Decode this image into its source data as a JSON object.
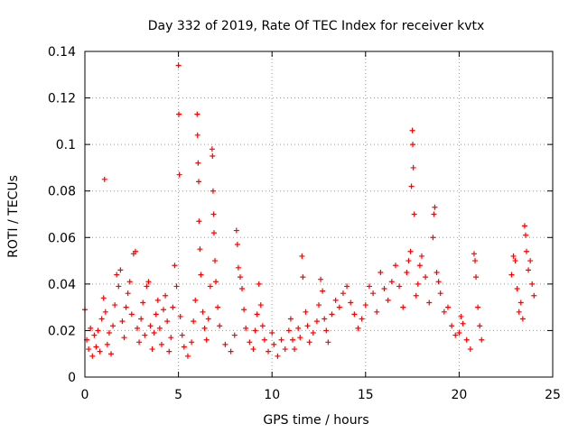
{
  "chart_data": {
    "type": "scatter",
    "title": "Day 332 of 2019, Rate Of TEC Index for receiver kvtx",
    "xlabel": "GPS time / hours",
    "ylabel": "ROTI / TECUs",
    "xlim": [
      0,
      25
    ],
    "ylim": [
      0,
      0.14
    ],
    "xticks": [
      0,
      5,
      10,
      15,
      20,
      25
    ],
    "xtick_labels": [
      "0",
      "5",
      "10",
      "15",
      "20",
      "25"
    ],
    "yticks": [
      0,
      0.02,
      0.04,
      0.06,
      0.08,
      0.1,
      0.12,
      0.14
    ],
    "ytick_labels": [
      "0",
      "0.02",
      "0.04",
      "0.06",
      "0.08",
      "0.1",
      "0.12",
      "0.14"
    ],
    "grid": true,
    "marker": "+",
    "color": "#ff0000",
    "series": [
      {
        "name": "ROTI",
        "points": [
          [
            0.0,
            0.029
          ],
          [
            0.1,
            0.016
          ],
          [
            0.2,
            0.012
          ],
          [
            0.3,
            0.021
          ],
          [
            0.4,
            0.009
          ],
          [
            0.5,
            0.018
          ],
          [
            0.6,
            0.013
          ],
          [
            0.7,
            0.02
          ],
          [
            0.8,
            0.011
          ],
          [
            0.9,
            0.025
          ],
          [
            1.0,
            0.034
          ],
          [
            1.05,
            0.085
          ],
          [
            1.1,
            0.028
          ],
          [
            1.2,
            0.014
          ],
          [
            1.3,
            0.019
          ],
          [
            1.4,
            0.01
          ],
          [
            1.5,
            0.022
          ],
          [
            1.6,
            0.031
          ],
          [
            1.7,
            0.044
          ],
          [
            1.8,
            0.039
          ],
          [
            1.9,
            0.046
          ],
          [
            2.0,
            0.024
          ],
          [
            2.1,
            0.017
          ],
          [
            2.2,
            0.03
          ],
          [
            2.3,
            0.036
          ],
          [
            2.4,
            0.041
          ],
          [
            2.5,
            0.027
          ],
          [
            2.6,
            0.053
          ],
          [
            2.7,
            0.054
          ],
          [
            2.8,
            0.021
          ],
          [
            2.9,
            0.015
          ],
          [
            3.0,
            0.025
          ],
          [
            3.1,
            0.032
          ],
          [
            3.2,
            0.018
          ],
          [
            3.3,
            0.039
          ],
          [
            3.4,
            0.041
          ],
          [
            3.5,
            0.022
          ],
          [
            3.6,
            0.012
          ],
          [
            3.7,
            0.019
          ],
          [
            3.8,
            0.027
          ],
          [
            3.9,
            0.033
          ],
          [
            4.0,
            0.021
          ],
          [
            4.1,
            0.014
          ],
          [
            4.2,
            0.029
          ],
          [
            4.3,
            0.035
          ],
          [
            4.4,
            0.024
          ],
          [
            4.5,
            0.011
          ],
          [
            4.6,
            0.017
          ],
          [
            4.7,
            0.03
          ],
          [
            4.8,
            0.048
          ],
          [
            4.9,
            0.039
          ],
          [
            5.0,
            0.134
          ],
          [
            5.02,
            0.113
          ],
          [
            5.05,
            0.087
          ],
          [
            5.1,
            0.026
          ],
          [
            5.2,
            0.018
          ],
          [
            5.3,
            0.013
          ],
          [
            5.5,
            0.009
          ],
          [
            5.7,
            0.015
          ],
          [
            5.8,
            0.024
          ],
          [
            5.9,
            0.033
          ],
          [
            6.0,
            0.113
          ],
          [
            6.02,
            0.104
          ],
          [
            6.05,
            0.092
          ],
          [
            6.08,
            0.084
          ],
          [
            6.1,
            0.067
          ],
          [
            6.15,
            0.055
          ],
          [
            6.2,
            0.044
          ],
          [
            6.3,
            0.028
          ],
          [
            6.4,
            0.021
          ],
          [
            6.5,
            0.016
          ],
          [
            6.6,
            0.025
          ],
          [
            6.7,
            0.039
          ],
          [
            6.8,
            0.098
          ],
          [
            6.82,
            0.095
          ],
          [
            6.85,
            0.08
          ],
          [
            6.88,
            0.07
          ],
          [
            6.9,
            0.062
          ],
          [
            6.95,
            0.05
          ],
          [
            7.0,
            0.041
          ],
          [
            7.1,
            0.03
          ],
          [
            7.2,
            0.022
          ],
          [
            7.5,
            0.014
          ],
          [
            7.8,
            0.011
          ],
          [
            8.0,
            0.018
          ],
          [
            8.1,
            0.063
          ],
          [
            8.15,
            0.057
          ],
          [
            8.2,
            0.047
          ],
          [
            8.3,
            0.043
          ],
          [
            8.4,
            0.038
          ],
          [
            8.5,
            0.029
          ],
          [
            8.6,
            0.021
          ],
          [
            8.8,
            0.015
          ],
          [
            9.0,
            0.012
          ],
          [
            9.1,
            0.02
          ],
          [
            9.2,
            0.027
          ],
          [
            9.3,
            0.04
          ],
          [
            9.4,
            0.031
          ],
          [
            9.5,
            0.022
          ],
          [
            9.6,
            0.016
          ],
          [
            9.8,
            0.011
          ],
          [
            10.0,
            0.019
          ],
          [
            10.1,
            0.014
          ],
          [
            10.3,
            0.009
          ],
          [
            10.5,
            0.016
          ],
          [
            10.7,
            0.012
          ],
          [
            10.9,
            0.02
          ],
          [
            11.0,
            0.025
          ],
          [
            11.1,
            0.016
          ],
          [
            11.2,
            0.012
          ],
          [
            11.4,
            0.021
          ],
          [
            11.5,
            0.017
          ],
          [
            11.6,
            0.052
          ],
          [
            11.65,
            0.043
          ],
          [
            11.8,
            0.028
          ],
          [
            11.9,
            0.022
          ],
          [
            12.0,
            0.015
          ],
          [
            12.2,
            0.019
          ],
          [
            12.4,
            0.024
          ],
          [
            12.5,
            0.031
          ],
          [
            12.6,
            0.042
          ],
          [
            12.7,
            0.037
          ],
          [
            12.8,
            0.025
          ],
          [
            12.9,
            0.02
          ],
          [
            13.0,
            0.015
          ],
          [
            13.2,
            0.027
          ],
          [
            13.4,
            0.033
          ],
          [
            13.6,
            0.03
          ],
          [
            13.8,
            0.036
          ],
          [
            14.0,
            0.039
          ],
          [
            14.2,
            0.032
          ],
          [
            14.4,
            0.027
          ],
          [
            14.6,
            0.021
          ],
          [
            14.8,
            0.025
          ],
          [
            15.0,
            0.031
          ],
          [
            15.2,
            0.039
          ],
          [
            15.4,
            0.036
          ],
          [
            15.6,
            0.028
          ],
          [
            15.8,
            0.045
          ],
          [
            16.0,
            0.038
          ],
          [
            16.2,
            0.033
          ],
          [
            16.4,
            0.041
          ],
          [
            16.6,
            0.048
          ],
          [
            16.8,
            0.039
          ],
          [
            17.0,
            0.03
          ],
          [
            17.2,
            0.045
          ],
          [
            17.3,
            0.05
          ],
          [
            17.4,
            0.054
          ],
          [
            17.45,
            0.082
          ],
          [
            17.5,
            0.106
          ],
          [
            17.52,
            0.1
          ],
          [
            17.55,
            0.09
          ],
          [
            17.6,
            0.07
          ],
          [
            17.7,
            0.035
          ],
          [
            17.8,
            0.04
          ],
          [
            17.9,
            0.048
          ],
          [
            18.0,
            0.052
          ],
          [
            18.2,
            0.043
          ],
          [
            18.4,
            0.032
          ],
          [
            18.6,
            0.06
          ],
          [
            18.65,
            0.07
          ],
          [
            18.7,
            0.073
          ],
          [
            18.8,
            0.045
          ],
          [
            18.9,
            0.041
          ],
          [
            19.0,
            0.036
          ],
          [
            19.2,
            0.028
          ],
          [
            19.4,
            0.03
          ],
          [
            19.6,
            0.022
          ],
          [
            19.8,
            0.018
          ],
          [
            20.0,
            0.019
          ],
          [
            20.1,
            0.026
          ],
          [
            20.2,
            0.023
          ],
          [
            20.4,
            0.016
          ],
          [
            20.6,
            0.012
          ],
          [
            20.8,
            0.053
          ],
          [
            20.85,
            0.05
          ],
          [
            20.9,
            0.043
          ],
          [
            21.0,
            0.03
          ],
          [
            21.1,
            0.022
          ],
          [
            21.2,
            0.016
          ],
          [
            22.8,
            0.044
          ],
          [
            22.9,
            0.052
          ],
          [
            23.0,
            0.05
          ],
          [
            23.1,
            0.038
          ],
          [
            23.2,
            0.028
          ],
          [
            23.3,
            0.032
          ],
          [
            23.4,
            0.025
          ],
          [
            23.5,
            0.065
          ],
          [
            23.55,
            0.061
          ],
          [
            23.6,
            0.054
          ],
          [
            23.7,
            0.046
          ],
          [
            23.8,
            0.05
          ],
          [
            23.9,
            0.04
          ],
          [
            24.0,
            0.035
          ]
        ]
      }
    ]
  }
}
